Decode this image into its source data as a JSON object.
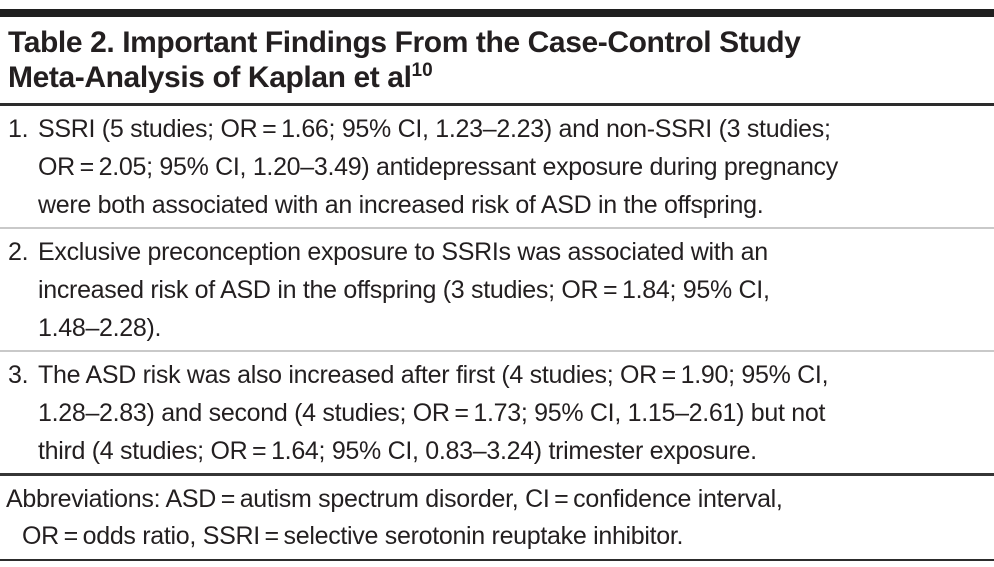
{
  "title": {
    "line1": "Table 2. Important Findings From the Case-Control Study",
    "line2": "Meta-Analysis of Kaplan et al",
    "reference": "10"
  },
  "findings": [
    {
      "number": "1.",
      "lines": [
        "SSRI (5 studies; OR = 1.66; 95% CI, 1.23–2.23) and non-SSRI (3 studies;",
        "OR = 2.05; 95% CI, 1.20–3.49) antidepressant exposure during pregnancy",
        "were both associated with an increased risk of ASD in the offspring."
      ]
    },
    {
      "number": "2.",
      "lines": [
        "Exclusive preconception exposure to SSRIs was associated with an",
        "increased risk of ASD in the offspring (3 studies; OR = 1.84; 95% CI,",
        "1.48–2.28)."
      ]
    },
    {
      "number": "3.",
      "lines": [
        "The ASD risk was also increased after first (4 studies; OR = 1.90; 95% CI,",
        "1.28–2.83) and second (4 studies; OR = 1.73; 95% CI, 1.15–2.61) but not",
        "third (4 studies; OR = 1.64; 95% CI, 0.83–3.24) trimester exposure."
      ]
    }
  ],
  "abbreviations": {
    "lines": [
      "Abbreviations: ASD = autism spectrum disorder, CI = confidence interval,",
      "OR = odds ratio, SSRI = selective serotonin reuptake inhibitor."
    ]
  },
  "colors": {
    "text": "#231f20",
    "top_bar": "#1f1f1f",
    "rule_dark": "#2c2c2c",
    "rule_light": "#c9c9c9",
    "rule_heavy": "#363636"
  }
}
